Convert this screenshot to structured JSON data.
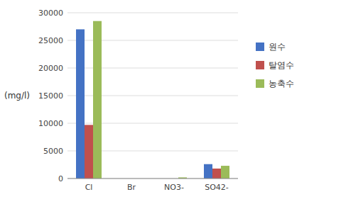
{
  "chart_data": {
    "type": "bar",
    "categories": [
      "Cl",
      "Br",
      "NO3-",
      "SO42-"
    ],
    "series": [
      {
        "name": "원수",
        "color": "#4472C4",
        "values": [
          27000,
          0,
          0,
          2600
        ]
      },
      {
        "name": "탈염수",
        "color": "#C0504D",
        "values": [
          9700,
          0,
          0,
          1800
        ]
      },
      {
        "name": "농축수",
        "color": "#9BBB59",
        "values": [
          28500,
          0,
          200,
          2300
        ]
      }
    ],
    "ylabel": "(mg/l)",
    "ylim": [
      0,
      30000
    ],
    "yticks": [
      0,
      5000,
      10000,
      15000,
      20000,
      25000,
      30000
    ],
    "grid": true,
    "legend": "right"
  }
}
